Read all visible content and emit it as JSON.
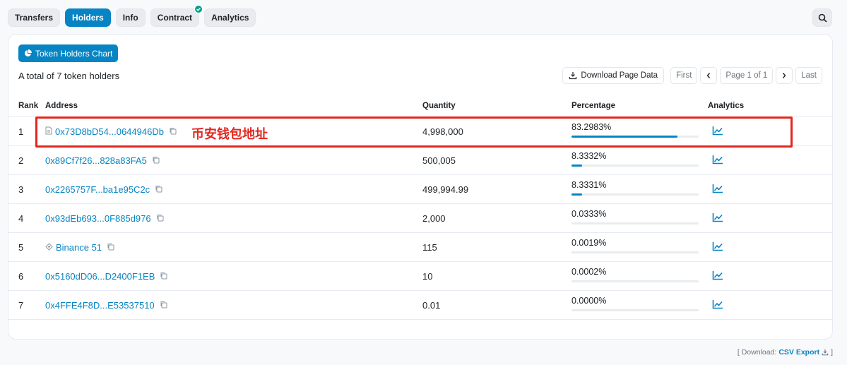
{
  "tabs": [
    {
      "label": "Transfers",
      "active": false
    },
    {
      "label": "Holders",
      "active": true
    },
    {
      "label": "Info",
      "active": false
    },
    {
      "label": "Contract",
      "active": false,
      "verified": true
    },
    {
      "label": "Analytics",
      "active": false
    }
  ],
  "chart_button": "Token Holders Chart",
  "total_text": "A total of 7 token holders",
  "pager": {
    "download": "Download Page Data",
    "first": "First",
    "page_info": "Page 1 of 1",
    "last": "Last"
  },
  "headers": {
    "rank": "Rank",
    "address": "Address",
    "quantity": "Quantity",
    "percentage": "Percentage",
    "analytics": "Analytics"
  },
  "rows": [
    {
      "rank": "1",
      "address": "0x73D8bD54...0644946Db",
      "icon": "contract-icon",
      "quantity": "4,998,000",
      "percentage": "83.2983%",
      "pct": 83.2983
    },
    {
      "rank": "2",
      "address": "0x89Cf7f26...828a83FA5",
      "icon": "",
      "quantity": "500,005",
      "percentage": "8.3332%",
      "pct": 8.3332
    },
    {
      "rank": "3",
      "address": "0x2265757F...ba1e95C2c",
      "icon": "",
      "quantity": "499,994.99",
      "percentage": "8.3331%",
      "pct": 8.3331
    },
    {
      "rank": "4",
      "address": "0x93dEb693...0F885d976",
      "icon": "",
      "quantity": "2,000",
      "percentage": "0.0333%",
      "pct": 0.0333
    },
    {
      "rank": "5",
      "address": "Binance 51",
      "icon": "binance-icon",
      "quantity": "115",
      "percentage": "0.0019%",
      "pct": 0.0019
    },
    {
      "rank": "6",
      "address": "0x5160dD06...D2400F1EB",
      "icon": "",
      "quantity": "10",
      "percentage": "0.0002%",
      "pct": 0.0002
    },
    {
      "rank": "7",
      "address": "0x4FFE4F8D...E53537510",
      "icon": "",
      "quantity": "0.01",
      "percentage": "0.0000%",
      "pct": 0.0
    }
  ],
  "annotation": "币安钱包地址",
  "footer": {
    "prefix": "[ Download:",
    "csv": "CSV Export",
    "suffix": "]"
  },
  "colors": {
    "accent": "#0784c3",
    "highlight": "#e2271f",
    "verified": "#00a186"
  }
}
